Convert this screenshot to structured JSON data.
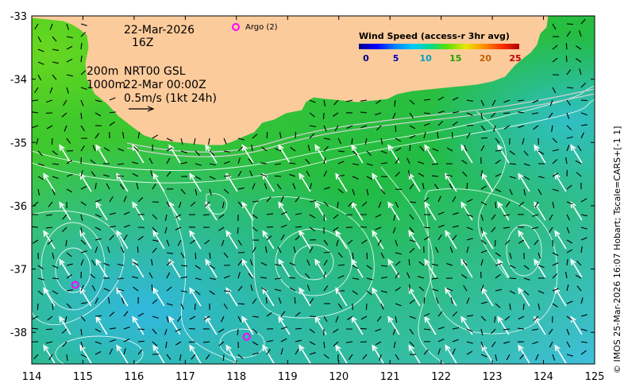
{
  "map": {
    "lon_range": [
      114,
      125
    ],
    "lat_range": [
      -38.5,
      -33
    ],
    "x_ticks": [
      "114",
      "115",
      "116",
      "117",
      "118",
      "119",
      "120",
      "121",
      "122",
      "123",
      "124",
      "125"
    ],
    "y_ticks": [
      "-33",
      "-34",
      "-35",
      "-36",
      "-37",
      "-38"
    ],
    "land_color": "#fccb9c",
    "ocean_colors": {
      "low": "#3fbfdc",
      "mid": "#22bb44",
      "high": "#4fd020"
    }
  },
  "annotations": {
    "date": "22-Mar-2026",
    "hour": "16Z",
    "depth1": "200m",
    "depth2": "1000m",
    "product": "NRT00 GSL",
    "product_time": "22-Mar 00:00Z",
    "scale_text": "0.5m/s (1kt 24h)"
  },
  "legend": {
    "title": "Wind Speed (access-r 3hr avg)",
    "ticks": [
      "0",
      "5",
      "10",
      "15",
      "20",
      "25"
    ],
    "tick_colors": [
      "#000080",
      "#0000c0",
      "#00a0c0",
      "#20a000",
      "#c06000",
      "#c00000"
    ],
    "gradient": [
      "#00008b",
      "#0000ff",
      "#0080ff",
      "#00c8ff",
      "#00d890",
      "#60e000",
      "#e8e800",
      "#ff9000",
      "#ff3000",
      "#b00000"
    ]
  },
  "argo": {
    "label": "Argo (2)",
    "marker_color": "#ff00ff",
    "floats": [
      {
        "lon": 114.85,
        "lat": -37.25
      },
      {
        "lon": 118.2,
        "lat": -38.07
      }
    ]
  },
  "credit": "© IMOS 25-Mar-2026 16:07 Hobart; Tscale=CARS+[-1 1]"
}
